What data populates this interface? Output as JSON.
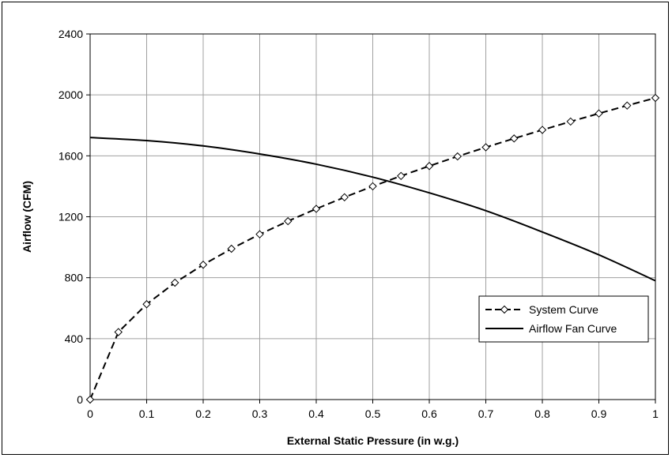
{
  "chart_data": {
    "type": "line",
    "title": "",
    "xlabel": "External Static Pressure (in w.g.)",
    "ylabel": "Airflow (CFM)",
    "xlim": [
      0,
      1
    ],
    "ylim": [
      0,
      2400
    ],
    "x_ticks": [
      "0",
      "0.1",
      "0.2",
      "0.3",
      "0.4",
      "0.5",
      "0.6",
      "0.7",
      "0.8",
      "0.9",
      "1"
    ],
    "y_ticks": [
      "0",
      "400",
      "800",
      "1200",
      "1600",
      "2000",
      "2400"
    ],
    "grid": true,
    "legend_position": "lower-right",
    "series": [
      {
        "name": "System Curve",
        "style": "dashed-diamond",
        "color": "#000000",
        "x": [
          0,
          0.05,
          0.1,
          0.15,
          0.2,
          0.25,
          0.3,
          0.35,
          0.4,
          0.45,
          0.5,
          0.55,
          0.6,
          0.65,
          0.7,
          0.75,
          0.8,
          0.85,
          0.9,
          0.95,
          1.0
        ],
        "y": [
          0,
          443,
          626,
          767,
          885,
          990,
          1085,
          1171,
          1252,
          1328,
          1400,
          1468,
          1533,
          1596,
          1656,
          1714,
          1770,
          1825,
          1878,
          1930,
          1980
        ]
      },
      {
        "name": "Airflow Fan Curve",
        "style": "solid",
        "color": "#000000",
        "x": [
          0,
          0.1,
          0.2,
          0.3,
          0.4,
          0.5,
          0.6,
          0.7,
          0.8,
          0.9,
          1.0
        ],
        "y": [
          1720,
          1700,
          1665,
          1612,
          1545,
          1460,
          1357,
          1240,
          1100,
          950,
          780
        ]
      }
    ]
  }
}
